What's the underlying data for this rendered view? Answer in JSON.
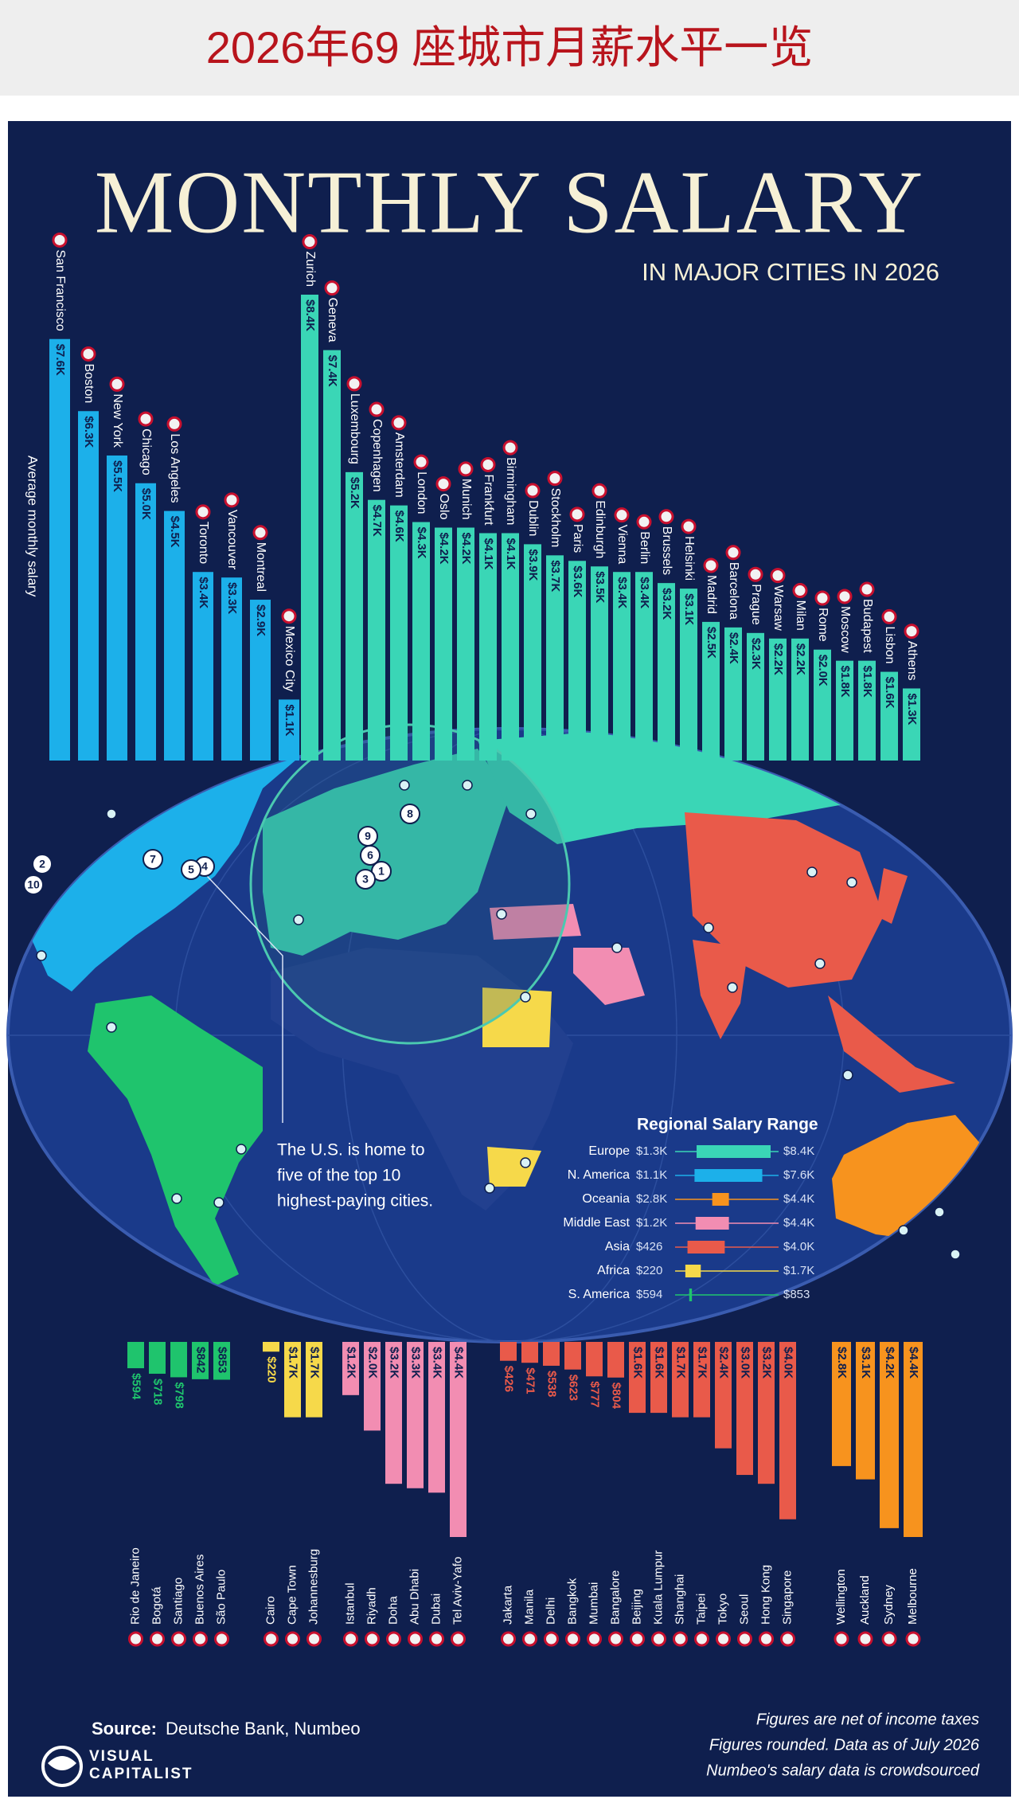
{
  "header": {
    "title": "2026年69 座城市月薪水平一览"
  },
  "infographic": {
    "title": "MONTHLY SALARY",
    "subtitle": "IN MAJOR CITIES IN 2026",
    "axis_label": "Average monthly salary"
  },
  "chart_data": [
    {
      "type": "bar",
      "color": "#1cb0ea",
      "categories": [
        "San Francisco",
        "Boston",
        "New York",
        "Chicago",
        "Los Angeles",
        "Toronto",
        "Vancouver",
        "Montreal",
        "Mexico City"
      ],
      "values": [
        7600,
        6300,
        5500,
        5000,
        4500,
        3400,
        3300,
        2900,
        1100
      ],
      "value_labels": [
        "$7.6K",
        "$6.3K",
        "$5.5K",
        "$5.0K",
        "$4.5K",
        "$3.4K",
        "$3.3K",
        "$2.9K",
        "$1.1K"
      ]
    },
    {
      "type": "bar",
      "color": "#3ad6b6",
      "categories": [
        "Zurich",
        "Geneva",
        "Luxembourg",
        "Copenhagen",
        "Amsterdam",
        "London",
        "Oslo",
        "Munich",
        "Frankfurt",
        "Birmingham",
        "Dublin",
        "Stockholm",
        "Paris",
        "Edinburgh",
        "Vienna",
        "Berlin",
        "Brussels",
        "Helsinki",
        "Madrid",
        "Barcelona",
        "Prague",
        "Warsaw",
        "Milan",
        "Rome",
        "Moscow",
        "Budapest",
        "Lisbon",
        "Athens"
      ],
      "values": [
        8400,
        7400,
        5200,
        4700,
        4600,
        4300,
        4200,
        4200,
        4100,
        4100,
        3900,
        3700,
        3600,
        3500,
        3400,
        3400,
        3200,
        3100,
        2500,
        2400,
        2300,
        2200,
        2200,
        2000,
        1800,
        1800,
        1600,
        1300
      ],
      "value_labels": [
        "$8.4K",
        "$7.4K",
        "$5.2K",
        "$4.7K",
        "$4.6K",
        "$4.3K",
        "$4.2K",
        "$4.2K",
        "$4.1K",
        "$4.1K",
        "$3.9K",
        "$3.7K",
        "$3.6K",
        "$3.5K",
        "$3.4K",
        "$3.4K",
        "$3.2K",
        "$3.1K",
        "$2.5K",
        "$2.4K",
        "$2.3K",
        "$2.2K",
        "$2.2K",
        "$2.0K",
        "$1.8K",
        "$1.8K",
        "$1.6K",
        "$1.3K"
      ]
    },
    {
      "type": "bar",
      "color": "#1fc46d",
      "categories": [
        "Rio de Janeiro",
        "Bogotá",
        "Santiago",
        "Buenos Aires",
        "São Paulo"
      ],
      "values": [
        594,
        718,
        798,
        842,
        853
      ],
      "value_labels": [
        "$594",
        "$718",
        "$798",
        "$842",
        "$853"
      ]
    },
    {
      "type": "bar",
      "color": "#f6d94a",
      "categories": [
        "Cairo",
        "Cape Town",
        "Johannesburg"
      ],
      "values": [
        220,
        1700,
        1700
      ],
      "value_labels": [
        "$220",
        "$1.7K",
        "$1.7K"
      ]
    },
    {
      "type": "bar",
      "color": "#f28db2",
      "categories": [
        "Istanbul",
        "Riyadh",
        "Doha",
        "Abu Dhabi",
        "Dubai",
        "Tel Aviv-Yafo"
      ],
      "values": [
        1200,
        2000,
        3200,
        3300,
        3400,
        4400
      ],
      "value_labels": [
        "$1.2K",
        "$2.0K",
        "$3.2K",
        "$3.3K",
        "$3.4K",
        "$4.4K"
      ]
    },
    {
      "type": "bar",
      "color": "#e95a4a",
      "categories": [
        "Jakarta",
        "Manila",
        "Delhi",
        "Bangkok",
        "Mumbai",
        "Bangalore",
        "Beijing",
        "Kuala Lumpur",
        "Shanghai",
        "Taipei",
        "Tokyo",
        "Seoul",
        "Hong Kong",
        "Singapore"
      ],
      "values": [
        426,
        471,
        538,
        623,
        777,
        804,
        1600,
        1600,
        1700,
        1700,
        2400,
        3000,
        3200,
        4000
      ],
      "value_labels": [
        "$426",
        "$471",
        "$538",
        "$623",
        "$777",
        "$804",
        "$1.6K",
        "$1.6K",
        "$1.7K",
        "$1.7K",
        "$2.4K",
        "$3.0K",
        "$3.2K",
        "$4.0K"
      ]
    },
    {
      "type": "bar",
      "color": "#f7931e",
      "categories": [
        "Wellington",
        "Auckland",
        "Sydney",
        "Melbourne"
      ],
      "values": [
        2800,
        3100,
        4200,
        4400
      ],
      "value_labels": [
        "$2.8K",
        "$3.1K",
        "$4.2K",
        "$4.4K"
      ]
    },
    {
      "type": "range",
      "title": "Regional Salary Range",
      "categories": [
        "Europe",
        "N. America",
        "Oceania",
        "Middle East",
        "Asia",
        "Africa",
        "S. America"
      ],
      "colors": [
        "#3ad6b6",
        "#1cb0ea",
        "#f7931e",
        "#f28db2",
        "#e95a4a",
        "#f6d94a",
        "#1fc46d"
      ],
      "low": [
        1300,
        1100,
        2800,
        1200,
        426,
        220,
        594
      ],
      "high": [
        8400,
        7600,
        4400,
        4400,
        4000,
        1700,
        853
      ],
      "low_labels": [
        "$1.3K",
        "$1.1K",
        "$2.8K",
        "$1.2K",
        "$426",
        "$220",
        "$594"
      ],
      "high_labels": [
        "$8.4K",
        "$7.6K",
        "$4.4K",
        "$4.4K",
        "$4.0K",
        "$1.7K",
        "$853"
      ]
    }
  ],
  "map": {
    "annotation": [
      "The U.S. is home to",
      "five of the top 10",
      "highest-paying cities."
    ],
    "markers": [
      1,
      2,
      3,
      4,
      5,
      6,
      7,
      8,
      9,
      10
    ]
  },
  "footer": {
    "source_label": "Source:",
    "source": "Deutsche Bank, Numbeo",
    "brand": [
      "VISUAL",
      "CAPITALIST"
    ],
    "notes": [
      "Figures are net of income taxes",
      "Figures rounded. Data as of July 2026",
      "Numbeo's salary data is crowdsourced"
    ]
  }
}
